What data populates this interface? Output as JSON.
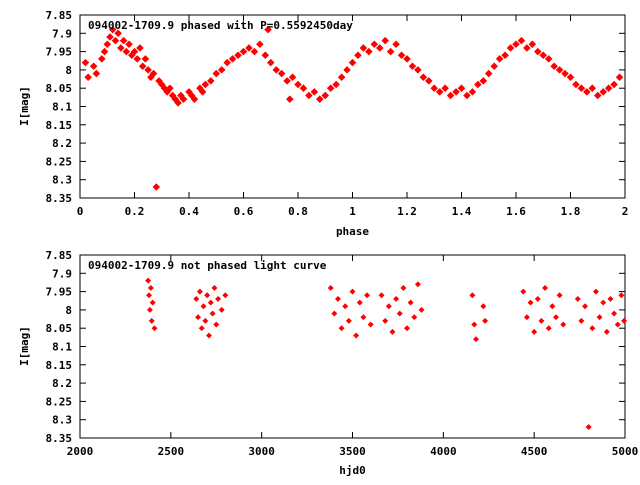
{
  "chart_data": [
    {
      "type": "scatter",
      "title": "094002-1709.9 phased with P=0.5592450day",
      "xlabel": "phase",
      "ylabel": "I[mag]",
      "xlim": [
        0,
        2
      ],
      "ylim": [
        7.85,
        8.35
      ],
      "y_inverted": true,
      "x_ticks": [
        "0",
        "0.2",
        "0.4",
        "0.6",
        "0.8",
        "1",
        "1.2",
        "1.4",
        "1.6",
        "1.8",
        "2"
      ],
      "y_ticks": [
        "7.85",
        "7.9",
        "7.95",
        "8",
        "8.05",
        "8.1",
        "8.15",
        "8.2",
        "8.25",
        "8.3",
        "8.35"
      ],
      "marker_color": "#ff0000",
      "series": [
        {
          "points": [
            [
              0.02,
              7.98
            ],
            [
              0.03,
              8.02
            ],
            [
              0.05,
              7.99
            ],
            [
              0.06,
              8.01
            ],
            [
              0.08,
              7.97
            ],
            [
              0.09,
              7.95
            ],
            [
              0.1,
              7.93
            ],
            [
              0.11,
              7.91
            ],
            [
              0.12,
              7.89
            ],
            [
              0.13,
              7.92
            ],
            [
              0.14,
              7.9
            ],
            [
              0.15,
              7.94
            ],
            [
              0.16,
              7.92
            ],
            [
              0.17,
              7.95
            ],
            [
              0.18,
              7.93
            ],
            [
              0.19,
              7.96
            ],
            [
              0.2,
              7.95
            ],
            [
              0.21,
              7.97
            ],
            [
              0.22,
              7.94
            ],
            [
              0.23,
              7.99
            ],
            [
              0.24,
              7.97
            ],
            [
              0.25,
              8.0
            ],
            [
              0.26,
              8.02
            ],
            [
              0.27,
              8.01
            ],
            [
              0.28,
              8.32
            ],
            [
              0.29,
              8.03
            ],
            [
              0.3,
              8.04
            ],
            [
              0.31,
              8.05
            ],
            [
              0.32,
              8.06
            ],
            [
              0.33,
              8.05
            ],
            [
              0.34,
              8.07
            ],
            [
              0.35,
              8.08
            ],
            [
              0.36,
              8.09
            ],
            [
              0.37,
              8.07
            ],
            [
              0.38,
              8.08
            ],
            [
              0.4,
              8.06
            ],
            [
              0.41,
              8.07
            ],
            [
              0.42,
              8.08
            ],
            [
              0.44,
              8.05
            ],
            [
              0.45,
              8.06
            ],
            [
              0.46,
              8.04
            ],
            [
              0.48,
              8.03
            ],
            [
              0.5,
              8.01
            ],
            [
              0.52,
              8.0
            ],
            [
              0.54,
              7.98
            ],
            [
              0.56,
              7.97
            ],
            [
              0.58,
              7.96
            ],
            [
              0.6,
              7.95
            ],
            [
              0.62,
              7.94
            ],
            [
              0.64,
              7.95
            ],
            [
              0.66,
              7.93
            ],
            [
              0.68,
              7.96
            ],
            [
              0.69,
              7.89
            ],
            [
              0.7,
              7.98
            ],
            [
              0.72,
              8.0
            ],
            [
              0.74,
              8.01
            ],
            [
              0.76,
              8.03
            ],
            [
              0.77,
              8.08
            ],
            [
              0.78,
              8.02
            ],
            [
              0.8,
              8.04
            ],
            [
              0.82,
              8.05
            ],
            [
              0.84,
              8.07
            ],
            [
              0.86,
              8.06
            ],
            [
              0.88,
              8.08
            ],
            [
              0.9,
              8.07
            ],
            [
              0.92,
              8.05
            ],
            [
              0.94,
              8.04
            ],
            [
              0.96,
              8.02
            ],
            [
              0.98,
              8.0
            ],
            [
              1.0,
              7.98
            ],
            [
              1.02,
              7.96
            ],
            [
              1.04,
              7.94
            ],
            [
              1.06,
              7.95
            ],
            [
              1.08,
              7.93
            ],
            [
              1.1,
              7.94
            ],
            [
              1.12,
              7.92
            ],
            [
              1.14,
              7.95
            ],
            [
              1.16,
              7.93
            ],
            [
              1.18,
              7.96
            ],
            [
              1.2,
              7.97
            ],
            [
              1.22,
              7.99
            ],
            [
              1.24,
              8.0
            ],
            [
              1.26,
              8.02
            ],
            [
              1.28,
              8.03
            ],
            [
              1.3,
              8.05
            ],
            [
              1.32,
              8.06
            ],
            [
              1.34,
              8.05
            ],
            [
              1.36,
              8.07
            ],
            [
              1.38,
              8.06
            ],
            [
              1.4,
              8.05
            ],
            [
              1.42,
              8.07
            ],
            [
              1.44,
              8.06
            ],
            [
              1.46,
              8.04
            ],
            [
              1.48,
              8.03
            ],
            [
              1.5,
              8.01
            ],
            [
              1.52,
              7.99
            ],
            [
              1.54,
              7.97
            ],
            [
              1.56,
              7.96
            ],
            [
              1.58,
              7.94
            ],
            [
              1.6,
              7.93
            ],
            [
              1.62,
              7.92
            ],
            [
              1.64,
              7.94
            ],
            [
              1.66,
              7.93
            ],
            [
              1.68,
              7.95
            ],
            [
              1.7,
              7.96
            ],
            [
              1.72,
              7.97
            ],
            [
              1.74,
              7.99
            ],
            [
              1.76,
              8.0
            ],
            [
              1.78,
              8.01
            ],
            [
              1.8,
              8.02
            ],
            [
              1.82,
              8.04
            ],
            [
              1.84,
              8.05
            ],
            [
              1.86,
              8.06
            ],
            [
              1.88,
              8.05
            ],
            [
              1.9,
              8.07
            ],
            [
              1.92,
              8.06
            ],
            [
              1.94,
              8.05
            ],
            [
              1.96,
              8.04
            ],
            [
              1.98,
              8.02
            ]
          ]
        }
      ]
    },
    {
      "type": "scatter",
      "title": "094002-1709.9 not phased light curve",
      "xlabel": "hjd0",
      "ylabel": "I[mag]",
      "xlim": [
        2000,
        5000
      ],
      "ylim": [
        7.85,
        8.35
      ],
      "y_inverted": true,
      "x_ticks": [
        "2000",
        "2500",
        "3000",
        "3500",
        "4000",
        "4500",
        "5000"
      ],
      "y_ticks": [
        "7.85",
        "7.9",
        "7.95",
        "8",
        "8.05",
        "8.1",
        "8.15",
        "8.2",
        "8.25",
        "8.3",
        "8.35"
      ],
      "marker_color": "#ff0000",
      "series": [
        {
          "points": [
            [
              2375,
              7.92
            ],
            [
              2380,
              7.96
            ],
            [
              2385,
              8.0
            ],
            [
              2390,
              7.94
            ],
            [
              2395,
              8.03
            ],
            [
              2400,
              7.98
            ],
            [
              2410,
              8.05
            ],
            [
              2640,
              7.97
            ],
            [
              2650,
              8.02
            ],
            [
              2660,
              7.95
            ],
            [
              2670,
              8.05
            ],
            [
              2680,
              7.99
            ],
            [
              2690,
              8.03
            ],
            [
              2700,
              7.96
            ],
            [
              2710,
              8.07
            ],
            [
              2720,
              7.98
            ],
            [
              2730,
              8.01
            ],
            [
              2740,
              7.94
            ],
            [
              2750,
              8.04
            ],
            [
              2760,
              7.97
            ],
            [
              2780,
              8.0
            ],
            [
              2800,
              7.96
            ],
            [
              3380,
              7.94
            ],
            [
              3400,
              8.01
            ],
            [
              3420,
              7.97
            ],
            [
              3440,
              8.05
            ],
            [
              3460,
              7.99
            ],
            [
              3480,
              8.03
            ],
            [
              3500,
              7.95
            ],
            [
              3520,
              8.07
            ],
            [
              3540,
              7.98
            ],
            [
              3560,
              8.02
            ],
            [
              3580,
              7.96
            ],
            [
              3600,
              8.04
            ],
            [
              3660,
              7.96
            ],
            [
              3680,
              8.03
            ],
            [
              3700,
              7.99
            ],
            [
              3720,
              8.06
            ],
            [
              3740,
              7.97
            ],
            [
              3760,
              8.01
            ],
            [
              3780,
              7.94
            ],
            [
              3800,
              8.05
            ],
            [
              3820,
              7.98
            ],
            [
              3840,
              8.02
            ],
            [
              3860,
              7.93
            ],
            [
              3880,
              8.0
            ],
            [
              4160,
              7.96
            ],
            [
              4170,
              8.04
            ],
            [
              4180,
              8.08
            ],
            [
              4220,
              7.99
            ],
            [
              4230,
              8.03
            ],
            [
              4440,
              7.95
            ],
            [
              4460,
              8.02
            ],
            [
              4480,
              7.98
            ],
            [
              4500,
              8.06
            ],
            [
              4520,
              7.97
            ],
            [
              4540,
              8.03
            ],
            [
              4560,
              7.94
            ],
            [
              4580,
              8.05
            ],
            [
              4600,
              7.99
            ],
            [
              4620,
              8.02
            ],
            [
              4640,
              7.96
            ],
            [
              4660,
              8.04
            ],
            [
              4740,
              7.97
            ],
            [
              4760,
              8.03
            ],
            [
              4780,
              7.99
            ],
            [
              4800,
              8.32
            ],
            [
              4820,
              8.05
            ],
            [
              4840,
              7.95
            ],
            [
              4860,
              8.02
            ],
            [
              4880,
              7.98
            ],
            [
              4900,
              8.06
            ],
            [
              4920,
              7.97
            ],
            [
              4940,
              8.01
            ],
            [
              4960,
              8.04
            ],
            [
              4980,
              7.96
            ],
            [
              4995,
              8.03
            ]
          ]
        }
      ]
    }
  ]
}
